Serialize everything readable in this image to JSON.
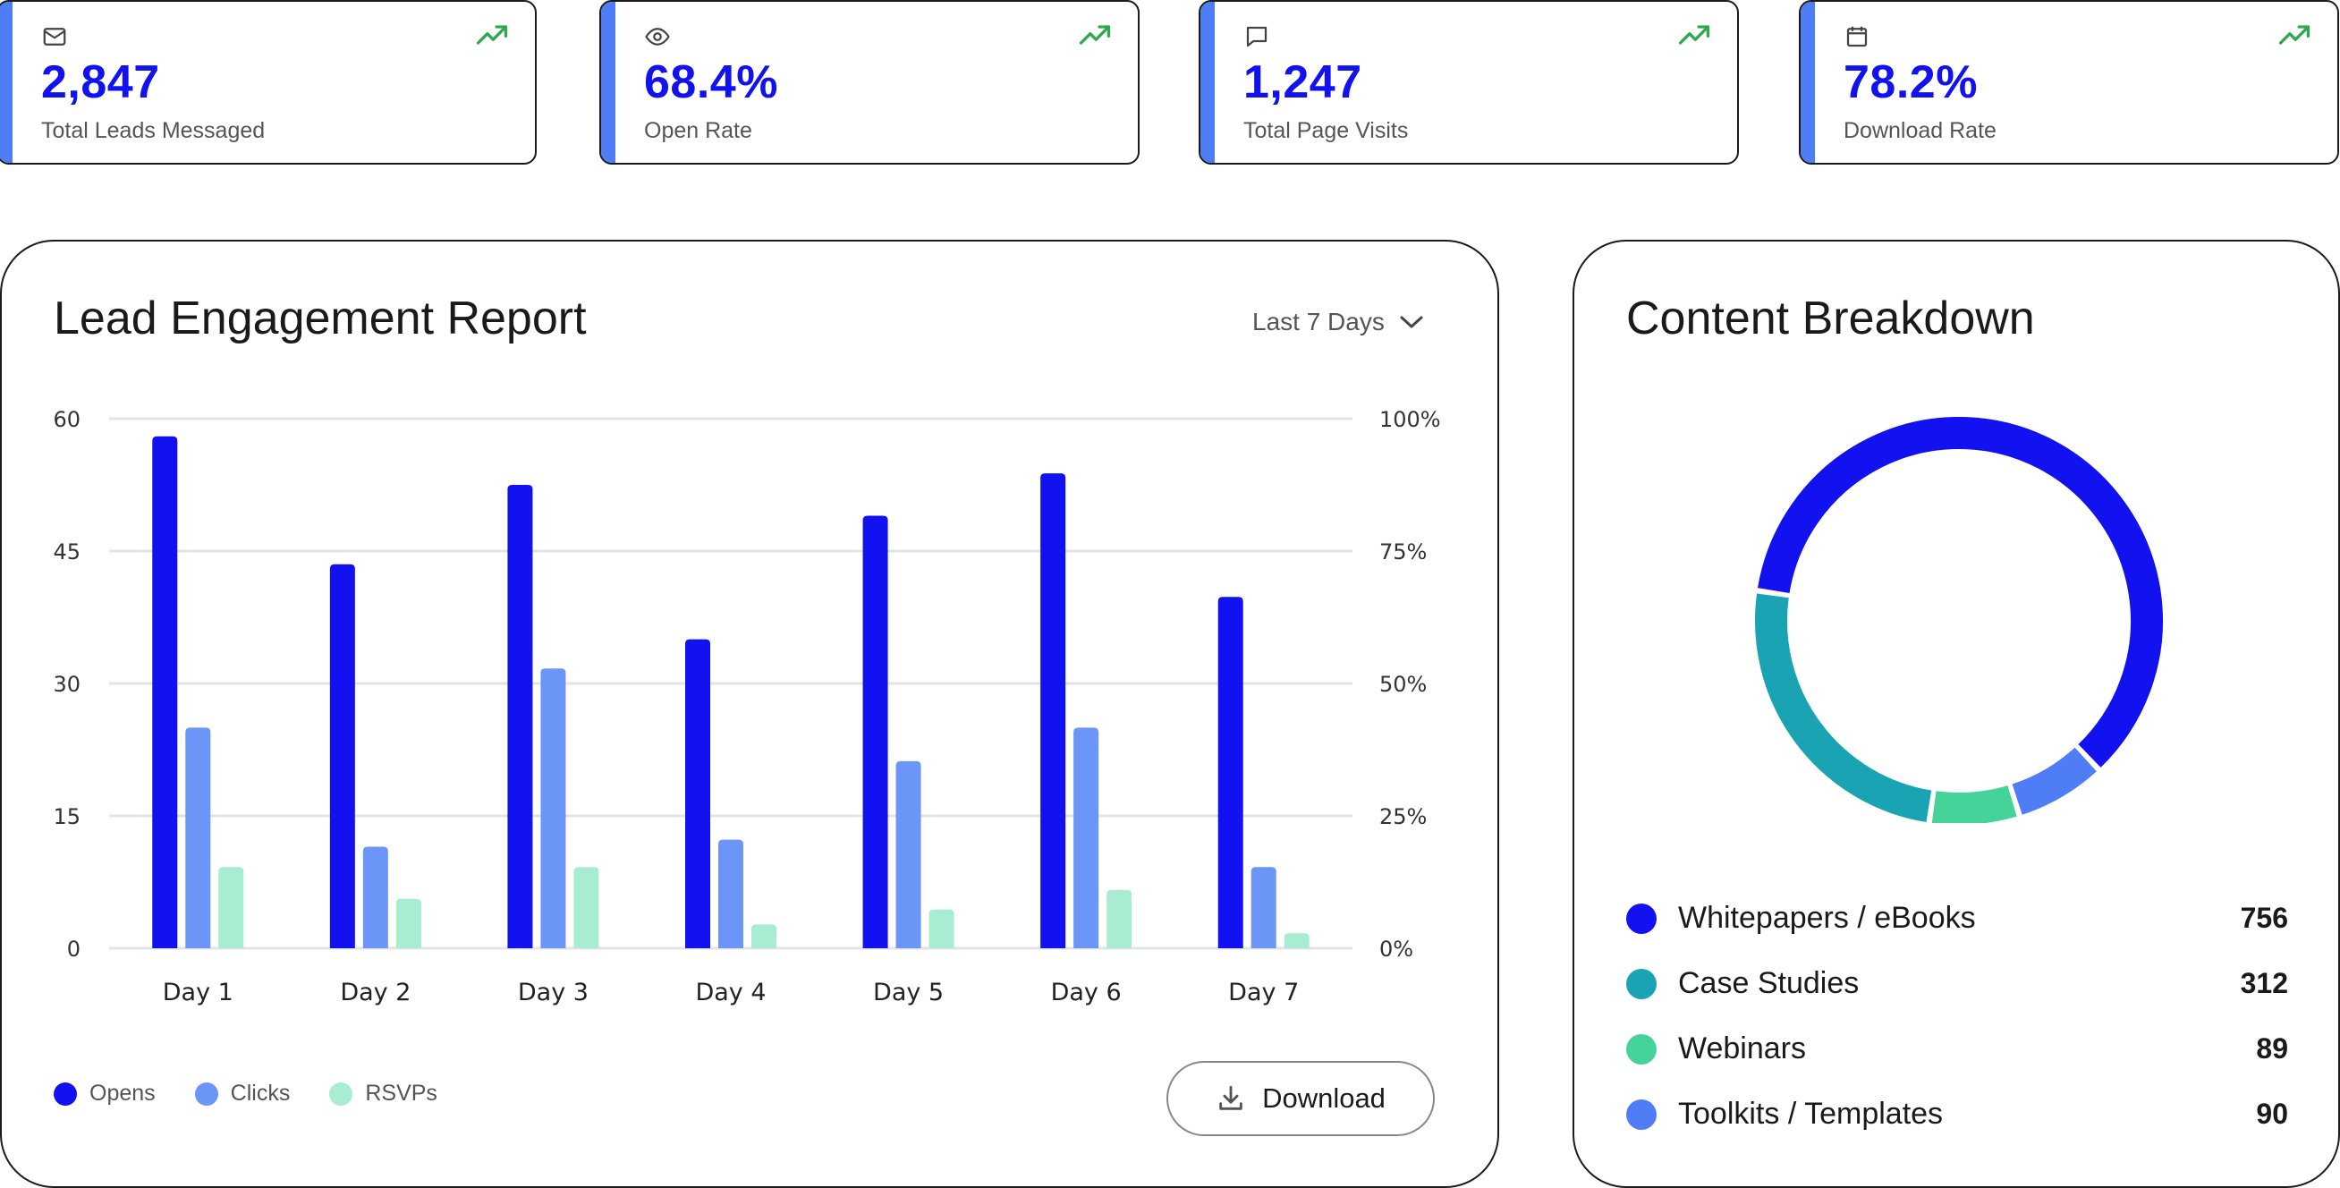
{
  "kpis": [
    {
      "icon": "mail-icon",
      "value": "2,847",
      "label": "Total Leads Messaged"
    },
    {
      "icon": "eye-icon",
      "value": "68.4%",
      "label": "Open Rate"
    },
    {
      "icon": "message-icon",
      "value": "1,247",
      "label": "Total Page Visits"
    },
    {
      "icon": "calendar-icon",
      "value": "78.2%",
      "label": "Download Rate"
    }
  ],
  "colors": {
    "accent": "#4f7df5",
    "kpi_value": "#1212f0",
    "trend_up": "#2fa84f",
    "opens": "#1212f0",
    "clicks": "#6b95f7",
    "rsvps": "#a8ecd1"
  },
  "engagement": {
    "title": "Lead Engagement Report",
    "range_label": "Last 7 Days",
    "download_label": "Download",
    "legend": [
      "Opens",
      "Clicks",
      "RSVPs"
    ]
  },
  "content_breakdown": {
    "title": "Content Breakdown",
    "items": [
      {
        "label": "Whitepapers / eBooks",
        "value": "756",
        "color": "#1212f0"
      },
      {
        "label": "Case Studies",
        "value": "312",
        "color": "#1aa3b3"
      },
      {
        "label": "Webinars",
        "value": "89",
        "color": "#46d39a"
      },
      {
        "label": "Toolkits / Templates",
        "value": "90",
        "color": "#4f7df5"
      }
    ]
  },
  "chart_data": [
    {
      "type": "bar",
      "title": "Lead Engagement Report",
      "categories": [
        "Day 1",
        "Day 2",
        "Day 3",
        "Day 4",
        "Day 5",
        "Day 6",
        "Day 7"
      ],
      "series": [
        {
          "name": "Opens",
          "values": [
            58,
            43.5,
            52.5,
            35,
            49,
            53.8,
            39.8
          ]
        },
        {
          "name": "Clicks",
          "values": [
            25,
            11.5,
            31.7,
            12.3,
            21.2,
            25,
            9.2
          ]
        },
        {
          "name": "RSVPs",
          "values": [
            9.2,
            5.6,
            9.2,
            2.7,
            4.4,
            6.6,
            1.7
          ]
        }
      ],
      "ylim": [
        0,
        60
      ],
      "yticks": [
        "0",
        "15",
        "30",
        "45",
        "60"
      ],
      "y2lim": [
        0,
        100
      ],
      "y2ticks": [
        "0%",
        "25%",
        "50%",
        "75%",
        "100%"
      ],
      "grid": true,
      "legend_position": "bottom-left"
    },
    {
      "type": "pie",
      "title": "Content Breakdown",
      "labels": [
        "Whitepapers / eBooks",
        "Toolkits / Templates",
        "Webinars",
        "Case Studies"
      ],
      "values": [
        756,
        90,
        89,
        312
      ],
      "colors": [
        "#1212f0",
        "#4f7df5",
        "#46d39a",
        "#1aa3b3"
      ]
    }
  ]
}
